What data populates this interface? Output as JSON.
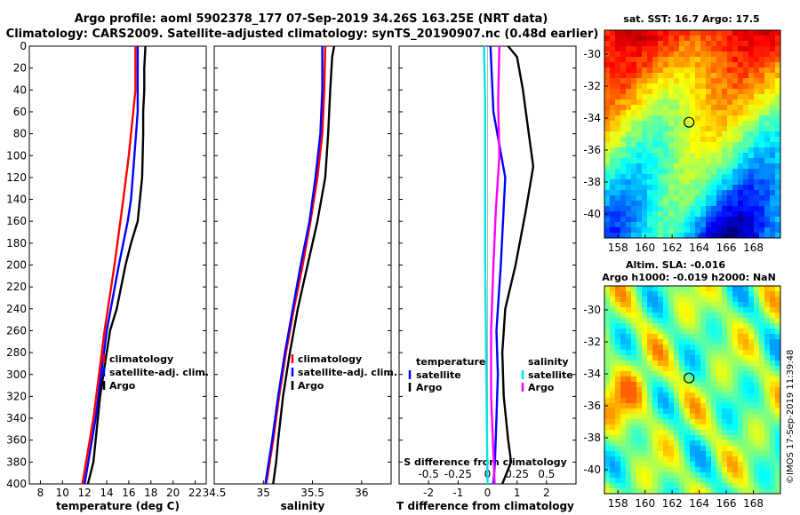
{
  "title_lines": [
    "Argo profile: aoml 5902378_177 07-Sep-2019 34.26S 163.25E (NRT data)",
    "Climatology: CARS2009. Satellite-adjusted climatology: synTS_20190907.nc (0.48d earlier)"
  ],
  "colors": {
    "climatology": "#ff0000",
    "satellite": "#0000ff",
    "argo": "#000000",
    "sal_sat": "#00e5e5",
    "sal_argo": "#ff00ff"
  },
  "chart_data": [
    {
      "type": "line",
      "name": "temperature",
      "xlabel": "temperature (deg C)",
      "ylabel": "",
      "xlim": [
        7,
        23
      ],
      "ylim": [
        0,
        400
      ],
      "xticks": [
        8,
        10,
        12,
        14,
        16,
        18,
        20,
        22
      ],
      "yticks": [
        0,
        20,
        40,
        60,
        80,
        100,
        120,
        140,
        160,
        180,
        200,
        220,
        240,
        260,
        280,
        300,
        320,
        340,
        360,
        380,
        400
      ],
      "legend": [
        "climatology",
        "satellite-adj. clim.",
        "Argo"
      ],
      "series": [
        {
          "name": "climatology",
          "color": "#ff0000",
          "depth": [
            0,
            40,
            60,
            100,
            140,
            200,
            260,
            300,
            340,
            400
          ],
          "values": [
            16.6,
            16.6,
            16.4,
            16.0,
            15.5,
            14.7,
            13.8,
            13.3,
            12.8,
            11.8
          ]
        },
        {
          "name": "satellite-adj. clim.",
          "color": "#0000ff",
          "depth": [
            0,
            40,
            60,
            100,
            140,
            160,
            200,
            260,
            300,
            340,
            400
          ],
          "values": [
            16.8,
            16.8,
            16.8,
            16.5,
            16.2,
            15.9,
            15.1,
            14.0,
            13.5,
            13.0,
            12.0
          ]
        },
        {
          "name": "Argo",
          "color": "#000000",
          "depth": [
            0,
            20,
            40,
            60,
            80,
            120,
            160,
            180,
            200,
            240,
            260,
            300,
            320,
            360,
            380,
            400
          ],
          "values": [
            17.5,
            17.4,
            17.4,
            17.3,
            17.3,
            17.2,
            16.8,
            16.2,
            15.7,
            14.9,
            14.3,
            13.7,
            13.4,
            13.0,
            12.8,
            12.3
          ]
        }
      ]
    },
    {
      "type": "line",
      "name": "salinity",
      "xlabel": "salinity",
      "xlim": [
        34.5,
        36.3
      ],
      "ylim": [
        0,
        400
      ],
      "xticks": [
        34.5,
        35,
        35.5,
        36
      ],
      "yticks": [
        0,
        20,
        40,
        60,
        80,
        100,
        120,
        140,
        160,
        180,
        200,
        220,
        240,
        260,
        280,
        300,
        320,
        340,
        360,
        380,
        400
      ],
      "legend": [
        "climatology",
        "satellite-adj. clim.",
        "Argo"
      ],
      "series": [
        {
          "name": "climatology",
          "color": "#ff0000",
          "depth": [
            0,
            40,
            80,
            120,
            160,
            200,
            240,
            280,
            320,
            360,
            400
          ],
          "values": [
            35.63,
            35.62,
            35.6,
            35.55,
            35.48,
            35.4,
            35.31,
            35.23,
            35.16,
            35.1,
            35.03
          ]
        },
        {
          "name": "satellite-adj. clim.",
          "color": "#0000ff",
          "depth": [
            0,
            40,
            80,
            120,
            160,
            200,
            240,
            280,
            320,
            360,
            400
          ],
          "values": [
            35.6,
            35.6,
            35.58,
            35.53,
            35.47,
            35.38,
            35.3,
            35.22,
            35.15,
            35.09,
            35.02
          ]
        },
        {
          "name": "Argo",
          "color": "#000000",
          "depth": [
            0,
            10,
            40,
            80,
            120,
            160,
            180,
            200,
            240,
            280,
            320,
            360,
            380,
            400
          ],
          "values": [
            35.72,
            35.7,
            35.68,
            35.66,
            35.63,
            35.55,
            35.5,
            35.45,
            35.35,
            35.27,
            35.2,
            35.15,
            35.13,
            35.1
          ]
        }
      ]
    },
    {
      "type": "line",
      "name": "differences",
      "xlabel": "T difference from climatology",
      "xlabel_top": "S difference from climatology",
      "xlim": [
        -3,
        3
      ],
      "ylim": [
        0,
        400
      ],
      "xticks": [
        -2,
        -1,
        0,
        1,
        2
      ],
      "xtick_labels": [
        "-2",
        "-1",
        "0",
        "1",
        "2"
      ],
      "sticks": [
        -0.5,
        -0.25,
        0,
        0.25,
        0.5
      ],
      "stick_labels": [
        "-0.5",
        "-0.25",
        "0",
        "0.25",
        "0.5"
      ],
      "slim": [
        -0.75,
        0.75
      ],
      "yticks": [
        0,
        20,
        40,
        60,
        80,
        100,
        120,
        140,
        160,
        180,
        200,
        220,
        240,
        260,
        280,
        300,
        320,
        340,
        360,
        380,
        400
      ],
      "legend_left_title": "temperature",
      "legend_left": [
        "satellite",
        "Argo"
      ],
      "legend_right_title": "salinity",
      "legend_right": [
        "satellite",
        "Argo"
      ],
      "series": [
        {
          "name": "T satellite",
          "color": "#0000ff",
          "axis": "T",
          "depth": [
            0,
            60,
            120,
            200,
            260,
            300,
            340,
            380,
            400
          ],
          "values": [
            0.1,
            0.2,
            0.6,
            0.45,
            0.3,
            0.35,
            0.3,
            0.25,
            0.2
          ]
        },
        {
          "name": "T Argo",
          "color": "#000000",
          "axis": "T",
          "depth": [
            0,
            10,
            40,
            80,
            110,
            150,
            200,
            240,
            280,
            320,
            360,
            380,
            400
          ],
          "values": [
            0.7,
            1.0,
            1.2,
            1.4,
            1.55,
            1.3,
            0.95,
            0.6,
            0.5,
            0.55,
            0.7,
            0.8,
            0.5
          ]
        },
        {
          "name": "S satellite",
          "color": "#00e5e5",
          "axis": "S",
          "depth": [
            0,
            50,
            100,
            200,
            300,
            400
          ],
          "values": [
            -0.03,
            -0.02,
            -0.02,
            -0.02,
            -0.01,
            0
          ]
        },
        {
          "name": "S Argo",
          "color": "#ff00ff",
          "axis": "S",
          "depth": [
            0,
            50,
            100,
            150,
            200,
            260,
            320,
            400
          ],
          "values": [
            0.1,
            0.09,
            0.1,
            0.07,
            0.05,
            0.03,
            0.03,
            0.06
          ]
        }
      ]
    },
    {
      "type": "heatmap",
      "name": "sst-map",
      "title": "sat. SST: 16.7 Argo: 17.5",
      "xticks": [
        158,
        160,
        162,
        164,
        166,
        168
      ],
      "yticks": [
        -30,
        -32,
        -34,
        -36,
        -38,
        -40
      ],
      "xlim": [
        157,
        170
      ],
      "ylim": [
        -41.5,
        -28.5
      ],
      "marker": [
        163.25,
        -34.26
      ]
    },
    {
      "type": "heatmap",
      "name": "sla-map",
      "title_lines": [
        "Altim. SLA: -0.016",
        "Argo h1000: -0.019 h2000: NaN"
      ],
      "xticks": [
        158,
        160,
        162,
        164,
        166,
        168
      ],
      "yticks": [
        -30,
        -32,
        -34,
        -36,
        -38,
        -40
      ],
      "xlim": [
        157,
        170
      ],
      "ylim": [
        -41.5,
        -28.5
      ],
      "marker": [
        163.25,
        -34.26
      ]
    }
  ],
  "credit": "©IMOS 17-Sep-2019 11:39:48"
}
